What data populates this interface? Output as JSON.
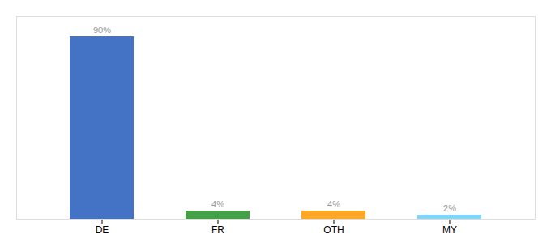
{
  "chart_data": {
    "type": "bar",
    "categories": [
      "DE",
      "FR",
      "OTH",
      "MY"
    ],
    "values": [
      90,
      4,
      4,
      2
    ],
    "value_labels": [
      "90%",
      "4%",
      "4%",
      "2%"
    ],
    "colors": [
      "#4472C4",
      "#43A047",
      "#FFA726",
      "#81D4FA"
    ],
    "ylim": [
      0,
      100
    ],
    "data_labels": true,
    "tick_labels": "x",
    "grid": false
  }
}
